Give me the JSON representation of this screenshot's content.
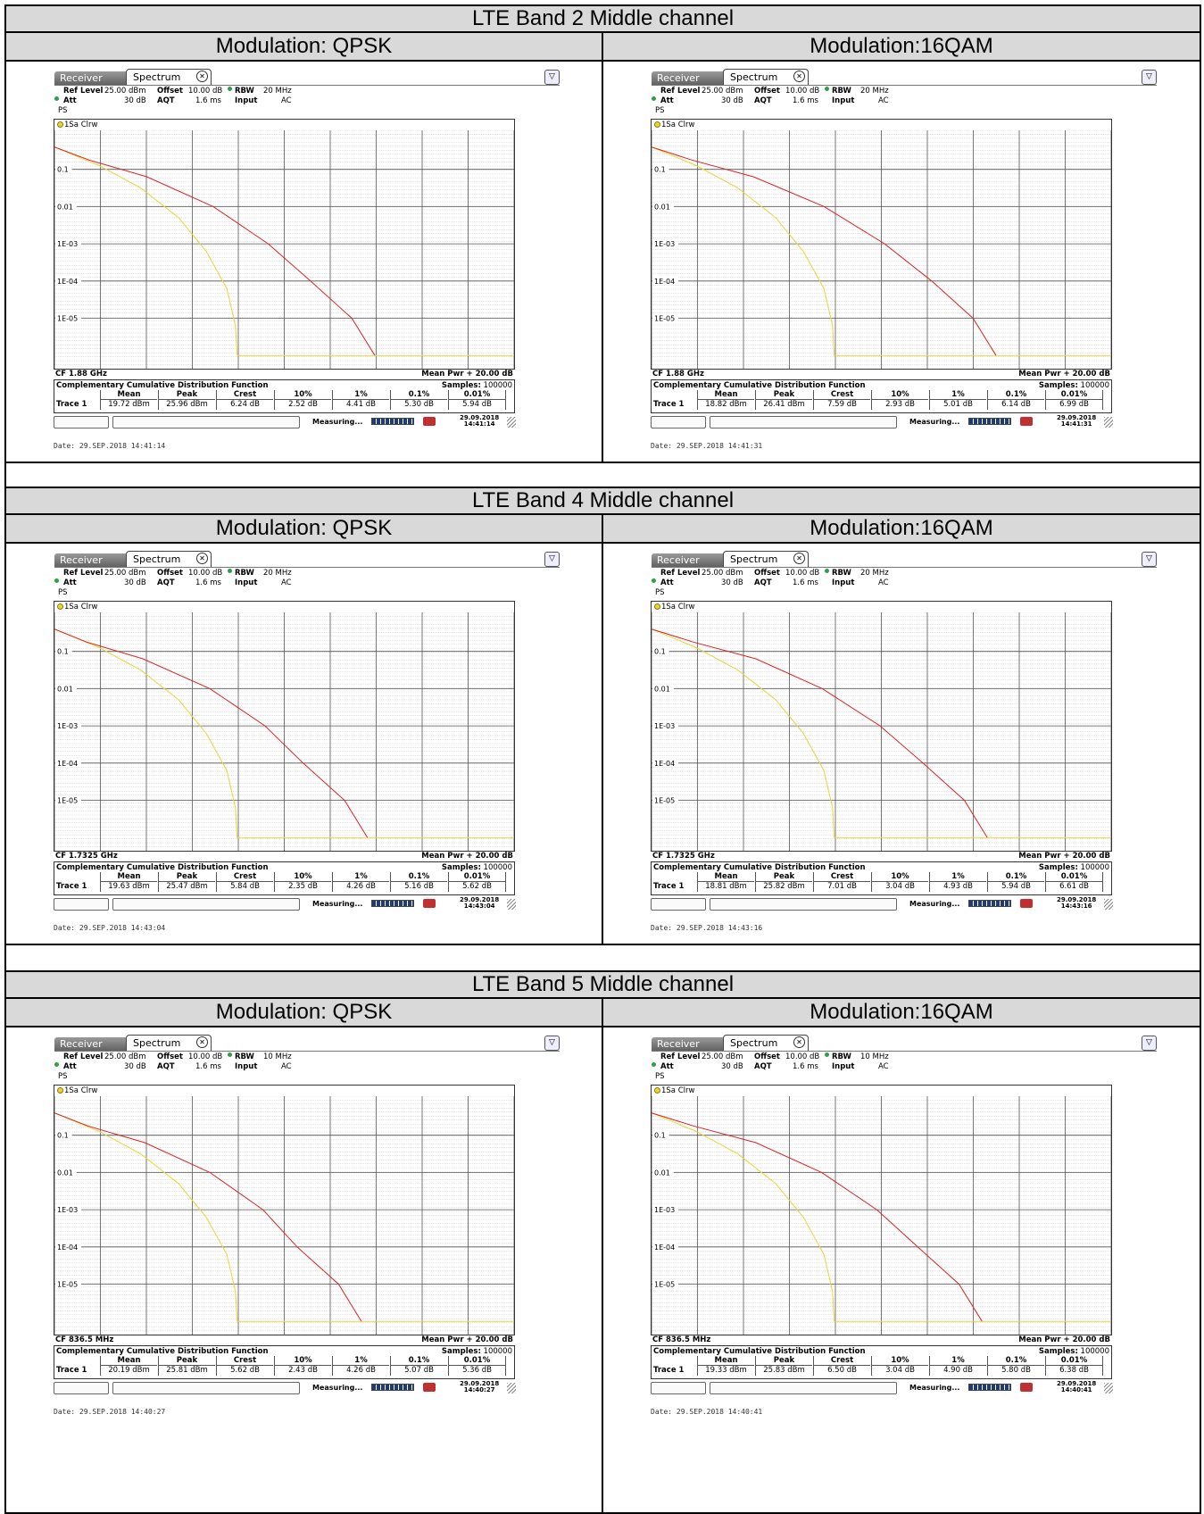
{
  "common": {
    "tab_receiver": "Receiver",
    "tab_spectrum": "Spectrum",
    "ref_level_label": "Ref Level",
    "ref_level": "25.00 dBm",
    "offset_label": "Offset",
    "offset": "10.00 dB",
    "rbw_label": "RBW",
    "att_label": "Att",
    "att": "30 dB",
    "aqt_label": "AQT",
    "aqt": "1.6 ms",
    "input_label": "Input",
    "input": "AC",
    "ps": "PS",
    "trace_label": "1Sa Clrw",
    "y_ticks": [
      "0.1",
      "0.01",
      "1E-03",
      "1E-04",
      "1E-05"
    ],
    "mean_pwr": "Mean Pwr + 20.00 dB",
    "ccdf_title": "Complementary Cumulative Distribution Function",
    "samples_label": "Samples:",
    "samples": "100000",
    "col_headers": [
      "Mean",
      "Peak",
      "Crest",
      "10%",
      "1%",
      "0.1%",
      "0.01%"
    ],
    "trace_name": "Trace 1",
    "measuring": "Measuring...",
    "date_prefix": "Date:",
    "colors": {
      "yellow_trace": "#e8d53a",
      "red_trace": "#e02020",
      "header_bg": "#d9d9d9"
    }
  },
  "bands": [
    {
      "title": "LTE Band 2 Middle channel",
      "panels": [
        {
          "modulation": "Modulation: QPSK",
          "rbw": "20 MHz",
          "cf": "CF 1.88 GHz",
          "values": [
            "19.72 dBm",
            "25.96 dBm",
            "6.24 dB",
            "2.52 dB",
            "4.41 dB",
            "5.30 dB",
            "5.94 dB"
          ],
          "stamp_date": "29.09.2018",
          "stamp_time": "14:41:14",
          "footer_date": "29.SEP.2018  14:41:14"
        },
        {
          "modulation": "Modulation:16QAM",
          "rbw": "20 MHz",
          "cf": "CF 1.88 GHz",
          "values": [
            "18.82 dBm",
            "26.41 dBm",
            "7.59 dB",
            "2.93 dB",
            "5.01 dB",
            "6.14 dB",
            "6.99 dB"
          ],
          "stamp_date": "29.09.2018",
          "stamp_time": "14:41:31",
          "footer_date": "29.SEP.2018  14:41:31"
        }
      ]
    },
    {
      "title": "LTE Band 4 Middle channel",
      "panels": [
        {
          "modulation": "Modulation: QPSK",
          "rbw": "20 MHz",
          "cf": "CF 1.7325 GHz",
          "values": [
            "19.63 dBm",
            "25.47 dBm",
            "5.84 dB",
            "2.35 dB",
            "4.26 dB",
            "5.16 dB",
            "5.62 dB"
          ],
          "stamp_date": "29.09.2018",
          "stamp_time": "14:43:04",
          "footer_date": "29.SEP.2018  14:43:04"
        },
        {
          "modulation": "Modulation:16QAM",
          "rbw": "20 MHz",
          "cf": "CF 1.7325 GHz",
          "values": [
            "18.81 dBm",
            "25.82 dBm",
            "7.01 dB",
            "3.04 dB",
            "4.93 dB",
            "5.94 dB",
            "6.61 dB"
          ],
          "stamp_date": "29.09.2018",
          "stamp_time": "14:43:16",
          "footer_date": "29.SEP.2018  14:43:16"
        }
      ]
    },
    {
      "title": "LTE Band 5 Middle channel",
      "panels": [
        {
          "modulation": "Modulation: QPSK",
          "rbw": "10 MHz",
          "cf": "CF 836.5 MHz",
          "values": [
            "20.19 dBm",
            "25.81 dBm",
            "5.62 dB",
            "2.43 dB",
            "4.26 dB",
            "5.07 dB",
            "5.36 dB"
          ],
          "stamp_date": "29.09.2018",
          "stamp_time": "14:40:27",
          "footer_date": "29.SEP.2018  14:40:27"
        },
        {
          "modulation": "Modulation:16QAM",
          "rbw": "10 MHz",
          "cf": "CF 836.5 MHz",
          "values": [
            "19.33 dBm",
            "25.83 dBm",
            "6.50 dB",
            "3.04 dB",
            "4.90 dB",
            "5.80 dB",
            "6.38 dB"
          ],
          "stamp_date": "29.09.2018",
          "stamp_time": "14:40:41",
          "footer_date": "29.SEP.2018  14:40:41"
        }
      ]
    }
  ]
}
